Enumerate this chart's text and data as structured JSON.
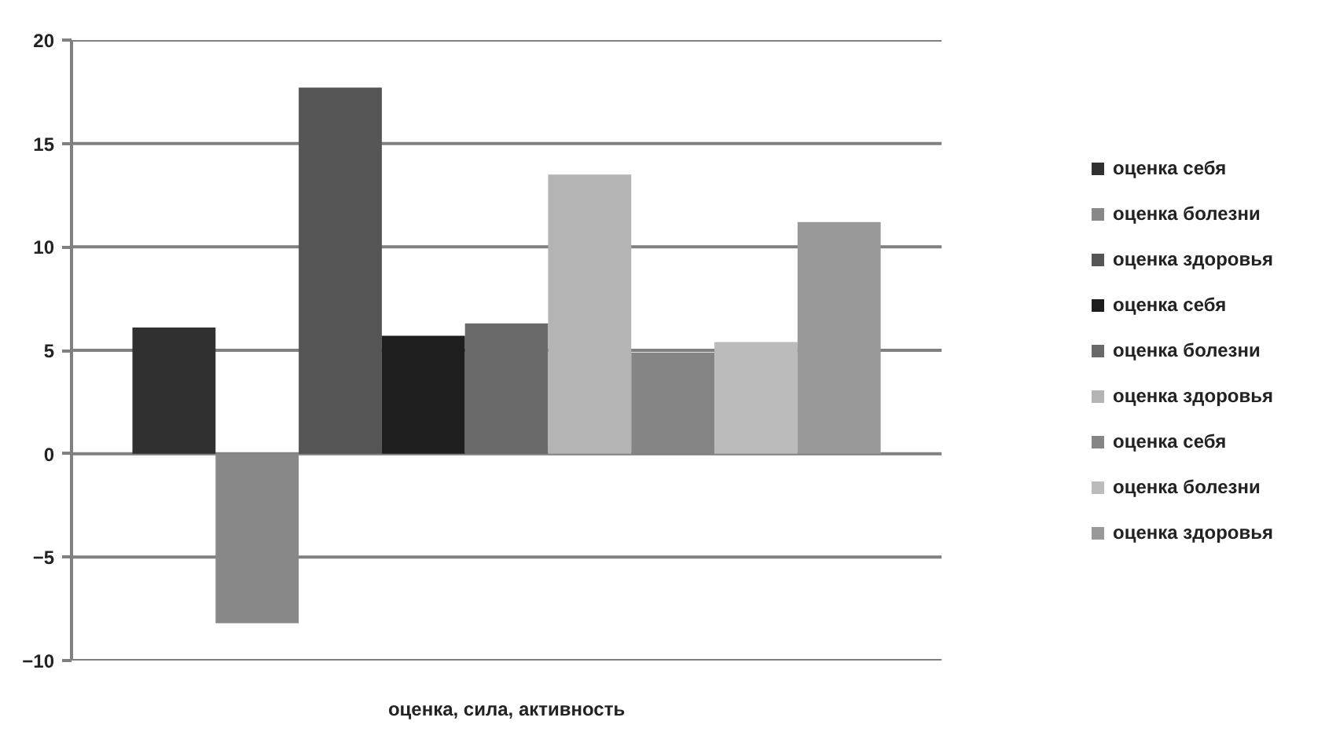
{
  "chart_data": {
    "type": "bar",
    "categories": [
      "оценка, сила, активность"
    ],
    "series": [
      {
        "name": "оценка себя",
        "color": "#303030",
        "values": [
          6.1
        ]
      },
      {
        "name": "оценка болезни",
        "color": "#888888",
        "values": [
          -8.2
        ]
      },
      {
        "name": "оценка здоровья",
        "color": "#555555",
        "values": [
          17.7
        ]
      },
      {
        "name": "оценка себя",
        "color": "#1e1e1e",
        "values": [
          5.7
        ]
      },
      {
        "name": "оценка болезни",
        "color": "#696969",
        "values": [
          6.3
        ]
      },
      {
        "name": "оценка здоровья",
        "color": "#b4b4b4",
        "values": [
          13.5
        ]
      },
      {
        "name": "оценка себя",
        "color": "#858585",
        "values": [
          4.9
        ]
      },
      {
        "name": "оценка болезни",
        "color": "#bbbbbb",
        "values": [
          5.4
        ]
      },
      {
        "name": "оценка здоровья",
        "color": "#999999",
        "values": [
          11.2
        ]
      }
    ],
    "ylim": [
      -10,
      20
    ],
    "yticks": [
      -10,
      -5,
      0,
      5,
      10,
      15,
      20
    ],
    "grid": "y",
    "legend": "right"
  }
}
